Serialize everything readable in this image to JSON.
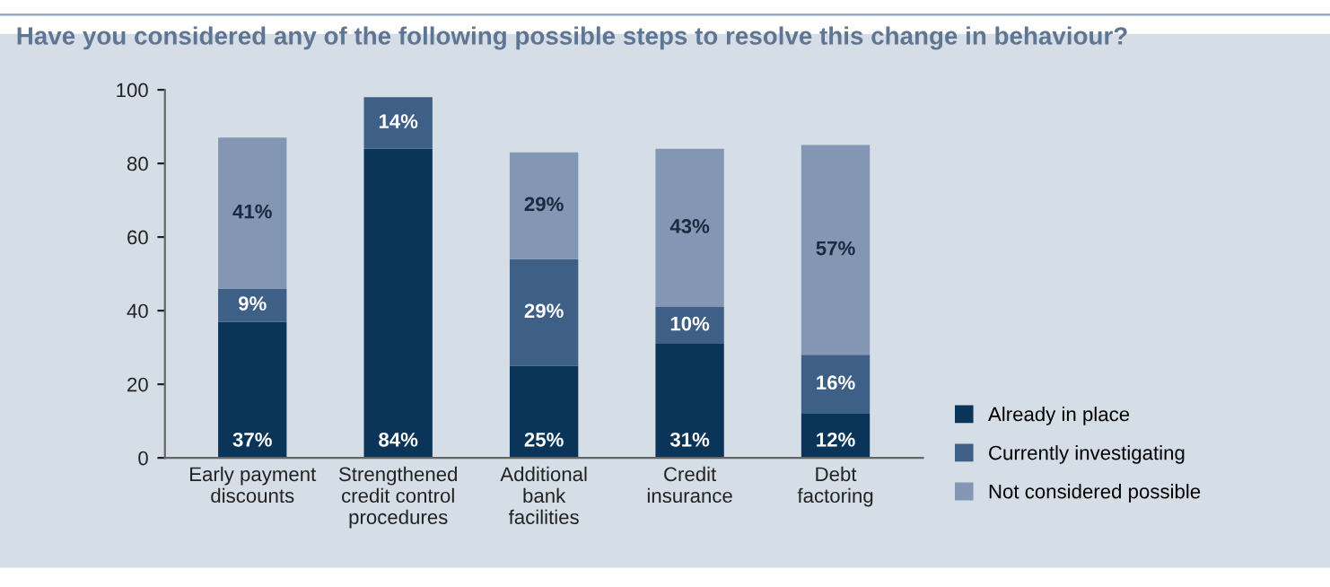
{
  "chart_data": {
    "type": "bar",
    "title": "Have you considered any of the following possible steps to resolve this change in behaviour?",
    "categories": [
      "Early payment\ndiscounts",
      "Strengthened\ncredit control\nprocedures",
      "Additional\nbank\nfacilities",
      "Credit\ninsurance",
      "Debt\nfactoring"
    ],
    "stacked": true,
    "ylim": [
      0,
      100
    ],
    "yticks": [
      0,
      20,
      40,
      60,
      80,
      100
    ],
    "grid": false,
    "legend": "bottom right",
    "series": [
      {
        "name": "Already in place",
        "color": "#0b3459",
        "values": [
          37,
          84,
          25,
          31,
          12
        ],
        "value_labels": [
          "37%",
          "84%",
          "25%",
          "31%",
          "12%"
        ]
      },
      {
        "name": "Currently investigating",
        "color": "#3e5f86",
        "values": [
          9,
          14,
          29,
          10,
          16
        ],
        "value_labels": [
          "9%",
          "14%",
          "29%",
          "10%",
          "16%"
        ]
      },
      {
        "name": "Not considered possible",
        "color": "#8397b4",
        "values": [
          41,
          null,
          29,
          43,
          57
        ],
        "value_labels": [
          "41%",
          null,
          "29%",
          "43%",
          "57%"
        ]
      }
    ]
  }
}
